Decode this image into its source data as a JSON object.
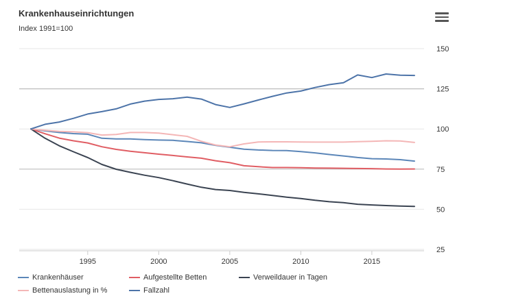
{
  "header": {
    "title": "Krankenhauseinrichtungen",
    "subtitle": "Index 1991=100",
    "menu_icon": "hamburger-menu-icon"
  },
  "chart_data": {
    "type": "line",
    "title": "Krankenhauseinrichtungen",
    "subtitle": "Index 1991=100",
    "xlabel": "",
    "ylabel": "",
    "xlim": [
      1991,
      2018
    ],
    "ylim": [
      25,
      150
    ],
    "x_ticks": [
      1995,
      2000,
      2005,
      2010,
      2015
    ],
    "y_ticks": [
      25,
      50,
      75,
      100,
      125,
      150
    ],
    "grid": "horizontal",
    "y_axis_side": "right",
    "legend_position": "bottom",
    "x": [
      1991,
      1992,
      1993,
      1994,
      1995,
      1996,
      1997,
      1998,
      1999,
      2000,
      2001,
      2002,
      2003,
      2004,
      2005,
      2006,
      2007,
      2008,
      2009,
      2010,
      2011,
      2012,
      2013,
      2014,
      2015,
      2016,
      2017,
      2018
    ],
    "series": [
      {
        "name": "Krankenhäuser",
        "color": "#5b86b8",
        "values": [
          100,
          98.8,
          97.8,
          97.1,
          96.7,
          94.2,
          93.8,
          93.8,
          93.4,
          93.1,
          92.9,
          92.2,
          91.4,
          89.8,
          88.6,
          87.4,
          86.9,
          86.6,
          86.5,
          85.9,
          85.1,
          84.1,
          83.2,
          82.2,
          81.5,
          81.3,
          80.9,
          80.0
        ]
      },
      {
        "name": "Aufgestellte Betten",
        "color": "#e05d63",
        "values": [
          100,
          97.0,
          94.3,
          92.6,
          91.3,
          88.9,
          87.3,
          86.1,
          85.2,
          84.3,
          83.5,
          82.6,
          81.8,
          80.2,
          79.0,
          77.1,
          76.5,
          76.0,
          76.0,
          75.9,
          75.7,
          75.6,
          75.5,
          75.4,
          75.3,
          75.1,
          75.0,
          75.1
        ]
      },
      {
        "name": "Verweildauer in Tagen",
        "color": "#3a4351",
        "values": [
          100,
          94.2,
          89.5,
          85.8,
          82.2,
          77.9,
          74.9,
          73.0,
          71.2,
          69.7,
          67.8,
          65.7,
          63.7,
          62.3,
          61.7,
          60.5,
          59.6,
          58.6,
          57.5,
          56.7,
          55.6,
          54.7,
          54.1,
          53.1,
          52.7,
          52.3,
          52.0,
          51.8
        ]
      },
      {
        "name": "Bettenauslastung in %",
        "color": "#f4b6b6",
        "values": [
          100,
          99.2,
          98.5,
          98.2,
          97.7,
          96.2,
          96.6,
          97.8,
          97.8,
          97.4,
          96.4,
          95.4,
          92.3,
          90.0,
          88.9,
          90.7,
          91.9,
          92.0,
          92.0,
          91.9,
          91.8,
          91.8,
          91.8,
          92.1,
          92.3,
          92.6,
          92.5,
          91.6
        ]
      },
      {
        "name": "Fallzahl",
        "color": "#4c73a8",
        "values": [
          100,
          102.9,
          104.3,
          106.6,
          109.3,
          110.8,
          112.5,
          115.5,
          117.3,
          118.4,
          118.8,
          119.8,
          118.6,
          115.2,
          113.4,
          115.6,
          118.0,
          120.3,
          122.4,
          123.6,
          125.8,
          127.6,
          128.8,
          133.6,
          132.0,
          134.2,
          133.5,
          133.3
        ]
      }
    ]
  }
}
